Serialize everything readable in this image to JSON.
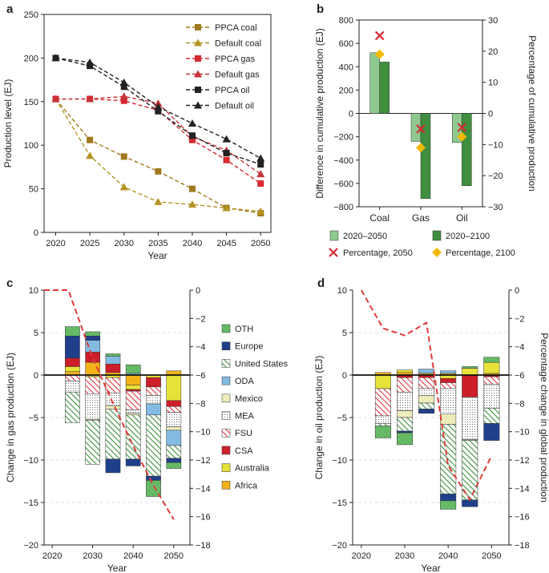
{
  "colors": {
    "ppca_coal": "#a07a1f",
    "default_coal": "#b39322",
    "ppca_gas": "#d62a30",
    "default_gas": "#c8333a",
    "ppca_oil": "#222222",
    "default_oil": "#222222",
    "bar_2050": "#8fc98f",
    "bar_2100": "#3f8f3f",
    "pct_2050": "#d62a30",
    "pct_2100": "#f5b800",
    "trend": "#e03a3a"
  },
  "chart_data": [
    {
      "panel": "a",
      "type": "line",
      "xlabel": "Year",
      "ylabel": "Production level (EJ)",
      "xlim": [
        2020,
        2050
      ],
      "ylim": [
        0,
        250
      ],
      "xticks": [
        2020,
        2025,
        2030,
        2035,
        2040,
        2045,
        2050
      ],
      "yticks": [
        0,
        50,
        100,
        150,
        200,
        250
      ],
      "x": [
        2020,
        2025,
        2030,
        2035,
        2040,
        2045,
        2050
      ],
      "series": [
        {
          "name": "PPCA coal",
          "values": [
            153,
            106,
            87,
            70,
            50,
            28,
            22
          ],
          "marker": "square",
          "color": "#a07a1f"
        },
        {
          "name": "Default coal",
          "values": [
            153,
            88,
            52,
            35,
            32,
            28,
            24
          ],
          "marker": "triangle",
          "color": "#b39322"
        },
        {
          "name": "PPCA gas",
          "values": [
            153,
            153,
            151,
            140,
            106,
            83,
            56
          ],
          "marker": "square",
          "color": "#d62a30"
        },
        {
          "name": "Default gas",
          "values": [
            153,
            153,
            156,
            148,
            110,
            94,
            67
          ],
          "marker": "triangle",
          "color": "#c8333a"
        },
        {
          "name": "PPCA oil",
          "values": [
            200,
            191,
            167,
            139,
            111,
            91,
            78
          ],
          "marker": "square",
          "color": "#222222"
        },
        {
          "name": "Default oil",
          "values": [
            200,
            195,
            172,
            144,
            125,
            107,
            85
          ],
          "marker": "triangle",
          "color": "#222222"
        }
      ]
    },
    {
      "panel": "b",
      "type": "bar",
      "ylabel": "Difference in cumulative production (EJ)",
      "y2label": "Percentage of cumulative production",
      "categories": [
        "Coal",
        "Gas",
        "Oil"
      ],
      "ylim": [
        -800,
        800
      ],
      "yticks": [
        -800,
        -600,
        -400,
        -200,
        0,
        200,
        400,
        600,
        800
      ],
      "y2lim": [
        -30,
        30
      ],
      "y2ticks": [
        -30,
        -20,
        -10,
        0,
        10,
        20,
        30
      ],
      "series": [
        {
          "name": "2020–2050",
          "values": [
            520,
            -240,
            -250
          ]
        },
        {
          "name": "2020–2100",
          "values": [
            440,
            -730,
            -620
          ]
        }
      ],
      "percentage": [
        {
          "name": "Percentage, 2050",
          "values": [
            25,
            -5,
            -4.5
          ]
        },
        {
          "name": "Percentage, 2100",
          "values": [
            19,
            -11,
            -7.5
          ]
        }
      ]
    },
    {
      "panel": "c",
      "type": "bar",
      "xlabel": "Year",
      "ylabel": "Change in gas production (EJ)",
      "xlim": [
        2018,
        2054
      ],
      "xticks": [
        2020,
        2030,
        2040,
        2050
      ],
      "ylim": [
        -20,
        10
      ],
      "yticks": [
        -20,
        -15,
        -10,
        -5,
        0,
        5,
        10
      ],
      "y2lim": [
        -18,
        0
      ],
      "y2ticks": [
        0,
        -2,
        -4,
        -6,
        -8,
        -10,
        -12,
        -14,
        -16,
        -18
      ],
      "categories": [
        2025,
        2030,
        2035,
        2040,
        2045,
        2050
      ],
      "legend": [
        "OTH",
        "Europe",
        "United States",
        "ODA",
        "Mexico",
        "MEA",
        "FSU",
        "CSA",
        "Australia",
        "Africa"
      ],
      "series": [
        {
          "name": "Africa",
          "values": [
            0.4,
            1.5,
            0.3,
            -1.2,
            0.0,
            0.5
          ]
        },
        {
          "name": "Australia",
          "values": [
            0.6,
            -0.2,
            -0.3,
            -0.5,
            -0.3,
            -3.0
          ]
        },
        {
          "name": "CSA",
          "values": [
            1.0,
            1.2,
            1.0,
            -0.2,
            -1.1,
            -0.7
          ]
        },
        {
          "name": "FSU",
          "values": [
            -0.7,
            -2.0,
            -1.8,
            -2.2,
            -1.0,
            -0.7
          ]
        },
        {
          "name": "MEA",
          "values": [
            -1.3,
            -3.0,
            -1.5,
            -0.4,
            -1.0,
            -1.7
          ]
        },
        {
          "name": "Mexico",
          "values": [
            0.0,
            -0.1,
            -0.4,
            -0.2,
            0.0,
            -0.4
          ]
        },
        {
          "name": "ODA",
          "values": [
            0.0,
            1.4,
            0.9,
            0.2,
            -1.3,
            -1.8
          ]
        },
        {
          "name": "United States",
          "values": [
            -3.6,
            -5.2,
            -5.9,
            -5.2,
            -7.2,
            -1.5
          ]
        },
        {
          "name": "Europe",
          "values": [
            2.6,
            0.5,
            -1.6,
            -0.8,
            -0.5,
            -0.5
          ]
        },
        {
          "name": "OTH",
          "values": [
            1.1,
            0.5,
            0.3,
            1.0,
            -1.9,
            -0.7
          ]
        }
      ],
      "trend": {
        "x": [
          2018,
          2022,
          2024,
          2030,
          2035,
          2040,
          2045,
          2050
        ],
        "values": [
          0,
          0,
          0,
          -4.8,
          -8.0,
          -11.0,
          -13.8,
          -16.2
        ]
      }
    },
    {
      "panel": "d",
      "type": "bar",
      "xlabel": "Year",
      "ylabel": "Change in oil production (EJ)",
      "y2label": "Percentage change in global production",
      "xlim": [
        2018,
        2054
      ],
      "xticks": [
        2020,
        2030,
        2040,
        2050
      ],
      "ylim": [
        -20,
        10
      ],
      "yticks": [
        -20,
        -15,
        -10,
        -5,
        0,
        5,
        10
      ],
      "y2lim": [
        -18,
        0
      ],
      "y2ticks": [
        0,
        -2,
        -4,
        -6,
        -8,
        -10,
        -12,
        -14,
        -16,
        -18
      ],
      "categories": [
        2025,
        2030,
        2035,
        2040,
        2045,
        2050
      ],
      "series": [
        {
          "name": "Africa",
          "values": [
            0.3,
            0.3,
            0.2,
            0.2,
            0.0,
            0.2
          ]
        },
        {
          "name": "Australia",
          "values": [
            -1.6,
            0.3,
            0.0,
            -0.4,
            0.8,
            1.3
          ]
        },
        {
          "name": "CSA",
          "values": [
            0.0,
            -0.3,
            -0.3,
            -0.5,
            -2.6,
            -0.2
          ]
        },
        {
          "name": "FSU",
          "values": [
            -3.2,
            -1.7,
            -1.3,
            -0.7,
            0.0,
            -0.9
          ]
        },
        {
          "name": "MEA",
          "values": [
            -0.9,
            -2.2,
            -0.8,
            -3.0,
            -5.0,
            -2.8
          ]
        },
        {
          "name": "Mexico",
          "values": [
            0.0,
            -0.8,
            -0.9,
            -1.2,
            -0.1,
            0.0
          ]
        },
        {
          "name": "ODA",
          "values": [
            0.0,
            0.0,
            0.5,
            0.3,
            0.0,
            0.0
          ]
        },
        {
          "name": "United States",
          "values": [
            -0.3,
            -1.6,
            -0.7,
            -8.2,
            -7.0,
            -1.8
          ]
        },
        {
          "name": "Europe",
          "values": [
            0.0,
            -0.2,
            -0.5,
            -0.8,
            -0.8,
            -2.0
          ]
        },
        {
          "name": "OTH",
          "values": [
            -1.4,
            -1.4,
            0.0,
            -1.0,
            0.2,
            0.6
          ]
        }
      ],
      "trend": {
        "x": [
          2020,
          2025,
          2030,
          2035,
          2040,
          2045,
          2050
        ],
        "values": [
          0,
          -2.7,
          -3.2,
          -2.3,
          -12.4,
          -14.8,
          -11.7
        ]
      }
    }
  ],
  "ui": {
    "panel_a": "a",
    "panel_b": "b",
    "panel_c": "c",
    "panel_d": "d",
    "legend_b_2050": "2020–2050",
    "legend_b_2100": "2020–2100",
    "legend_b_pct2050": "Percentage, 2050",
    "legend_b_pct2100": "Percentage, 2100"
  }
}
